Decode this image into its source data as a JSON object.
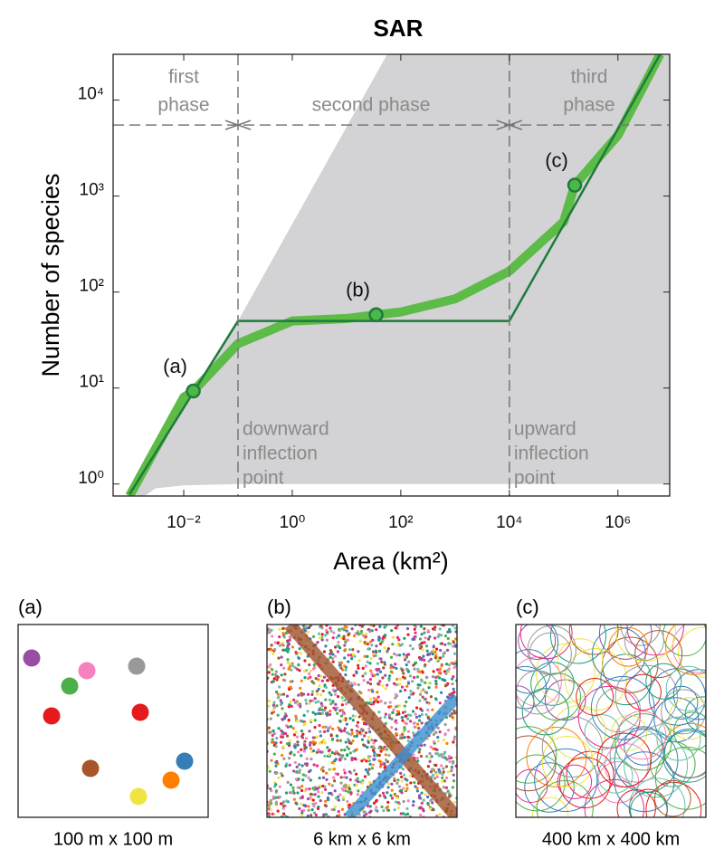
{
  "chart_data": {
    "type": "line",
    "title": "SAR",
    "xlabel": "Area (km²)",
    "ylabel": "Number of species",
    "xscale": "log",
    "yscale": "log",
    "xlim": [
      0.0005,
      9000000
    ],
    "ylim": [
      0.75,
      30000
    ],
    "xticks": [
      {
        "value": 0.01,
        "label": "10⁻²"
      },
      {
        "value": 1,
        "label": "10⁰"
      },
      {
        "value": 100,
        "label": "10²"
      },
      {
        "value": 10000,
        "label": "10⁴"
      },
      {
        "value": 1000000,
        "label": "10⁶"
      }
    ],
    "yticks": [
      {
        "value": 1,
        "label": "10⁰"
      },
      {
        "value": 10,
        "label": "10¹"
      },
      {
        "value": 100,
        "label": "10²"
      },
      {
        "value": 1000,
        "label": "10³"
      },
      {
        "value": 10000,
        "label": "10⁴"
      }
    ],
    "shaded_region": {
      "color": "#d3d3d5",
      "x": [
        0.0019,
        0.003,
        0.01,
        0.1,
        9000000,
        9000000,
        56,
        0.1,
        0.001
      ],
      "values": [
        0.75,
        0.9,
        0.97,
        1,
        1,
        30000,
        30000,
        50,
        0.78
      ]
    },
    "series": [
      {
        "color": "#5dbb48",
        "x": [
          0.001,
          0.01,
          0.015,
          0.1,
          1,
          10,
          35,
          100,
          1000,
          10000,
          100000,
          160000,
          1000000,
          6000000
        ],
        "values": [
          0.75,
          8,
          9.3,
          29,
          50,
          53,
          58,
          62,
          85,
          165,
          540,
          1300,
          4300,
          30000
        ]
      },
      {
        "color": "#1e7b3c",
        "x": [
          0.001,
          0.1,
          10000,
          6000000
        ],
        "values": [
          0.78,
          50,
          50,
          30000
        ]
      }
    ],
    "points": [
      {
        "label": "(a)",
        "x": 0.015,
        "y": 9.3
      },
      {
        "label": "(b)",
        "x": 35,
        "y": 58
      },
      {
        "label": "(c)",
        "x": 160000,
        "y": 1300
      }
    ],
    "inflection_x": [
      0.1,
      10000
    ],
    "phase_line_y": 5500,
    "phase_labels": [
      [
        "first",
        "phase"
      ],
      [
        "second phase"
      ],
      [
        "third",
        "phase"
      ]
    ],
    "inflection_labels": [
      [
        "downward",
        "inflection",
        "point"
      ],
      [
        "upward",
        "inflection",
        "point"
      ]
    ]
  },
  "panels": [
    {
      "label": "(a)",
      "caption": "100 m x 100 m"
    },
    {
      "label": "(b)",
      "caption": "6 km x 6 km"
    },
    {
      "label": "(c)",
      "caption": "400 km x 400 km"
    }
  ]
}
